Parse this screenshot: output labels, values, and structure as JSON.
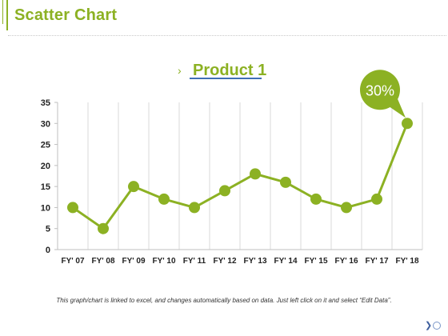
{
  "slide": {
    "title": "Scatter Chart",
    "footnote": "This graph/chart is linked to excel, and changes automatically based on data. Just left click on it and select “Edit Data”.",
    "nav_icons": [
      "chevron-right-icon",
      "circle-icon"
    ]
  },
  "colors": {
    "accent": "#8cb123",
    "title_underline": "#3f6fb6",
    "text": "#222222",
    "grid": "#d9d9d9"
  },
  "chart_data": {
    "type": "line",
    "title": "Product 1",
    "title_marker": "›",
    "categories": [
      "FY' 07",
      "FY' 08",
      "FY' 09",
      "FY' 10",
      "FY' 11",
      "FY' 12",
      "FY' 13",
      "FY' 14",
      "FY' 15",
      "FY' 16",
      "FY' 17",
      "FY' 18"
    ],
    "series": [
      {
        "values": [
          10,
          5,
          15,
          12,
          10,
          14,
          18,
          16,
          12,
          10,
          12,
          30
        ]
      }
    ],
    "ylim": [
      0,
      35
    ],
    "yticks": [
      0,
      5,
      10,
      15,
      20,
      25,
      30,
      35
    ],
    "vertical_grid": true,
    "horizontal_grid": false,
    "legend": "none",
    "callout": {
      "text": "30%",
      "category": "FY' 18"
    }
  }
}
